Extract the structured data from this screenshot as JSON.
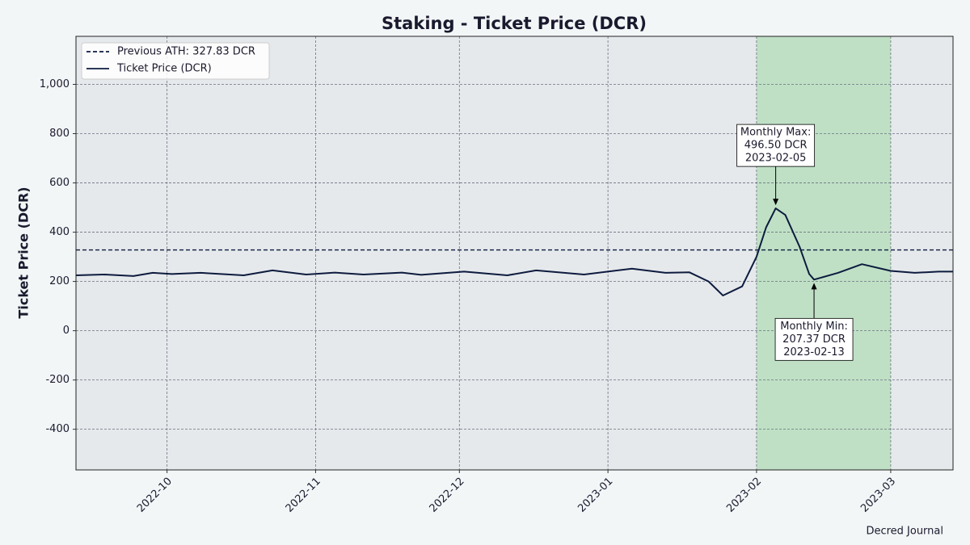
{
  "chart_data": {
    "type": "line",
    "title": "Staking - Ticket Price (DCR)",
    "ylabel": "Ticket Price (DCR)",
    "source": "Decred Journal",
    "xlim": [
      "2022-09-12",
      "2023-03-14"
    ],
    "xticks": [
      {
        "value": "2022-10-01",
        "label": "2022-10"
      },
      {
        "value": "2022-11-01",
        "label": "2022-11"
      },
      {
        "value": "2022-12-01",
        "label": "2022-12"
      },
      {
        "value": "2023-01-01",
        "label": "2023-01"
      },
      {
        "value": "2023-02-01",
        "label": "2023-02"
      },
      {
        "value": "2023-03-01",
        "label": "2023-03"
      }
    ],
    "ylim": [
      -565,
      1195
    ],
    "yticks": [
      -400,
      -200,
      0,
      200,
      400,
      600,
      800,
      {
        "value": 1000,
        "label": "1,000"
      }
    ],
    "grid": true,
    "legend": "upper left",
    "highlight": {
      "from": "2023-02-01",
      "to": "2023-03-01",
      "color": "#bfe0c5"
    },
    "hlines": [
      {
        "name": "Previous ATH: 327.83 DCR",
        "value": 327.83,
        "color": "#0d1b3e"
      }
    ],
    "series": [
      {
        "name": "Ticket Price (DCR)",
        "color": "#0d1b3e",
        "x": [
          "2022-09-12",
          "2022-09-18",
          "2022-09-24",
          "2022-09-28",
          "2022-10-02",
          "2022-10-08",
          "2022-10-17",
          "2022-10-23",
          "2022-10-30",
          "2022-11-05",
          "2022-11-11",
          "2022-11-19",
          "2022-11-23",
          "2022-12-02",
          "2022-12-11",
          "2022-12-17",
          "2022-12-27",
          "2023-01-06",
          "2023-01-13",
          "2023-01-18",
          "2023-01-22",
          "2023-01-25",
          "2023-01-29",
          "2023-02-01",
          "2023-02-03",
          "2023-02-05",
          "2023-02-07",
          "2023-02-10",
          "2023-02-12",
          "2023-02-13",
          "2023-02-18",
          "2023-02-23",
          "2023-03-01",
          "2023-03-06",
          "2023-03-11",
          "2023-03-14"
        ],
        "values": [
          225,
          228,
          222,
          235,
          230,
          235,
          225,
          245,
          228,
          236,
          228,
          236,
          227,
          240,
          225,
          245,
          228,
          252,
          235,
          237,
          200,
          143,
          180,
          300,
          420,
          496.5,
          470,
          340,
          230,
          207.37,
          235,
          270,
          243,
          235,
          240,
          240
        ]
      }
    ],
    "annotations": [
      {
        "x": "2023-02-05",
        "y": 496.5,
        "lines": [
          "Monthly Max:",
          "496.50 DCR",
          "2023-02-05"
        ]
      },
      {
        "x": "2023-02-13",
        "y": 207.37,
        "lines": [
          "Monthly Min:",
          "207.37 DCR",
          "2023-02-13"
        ]
      }
    ]
  }
}
